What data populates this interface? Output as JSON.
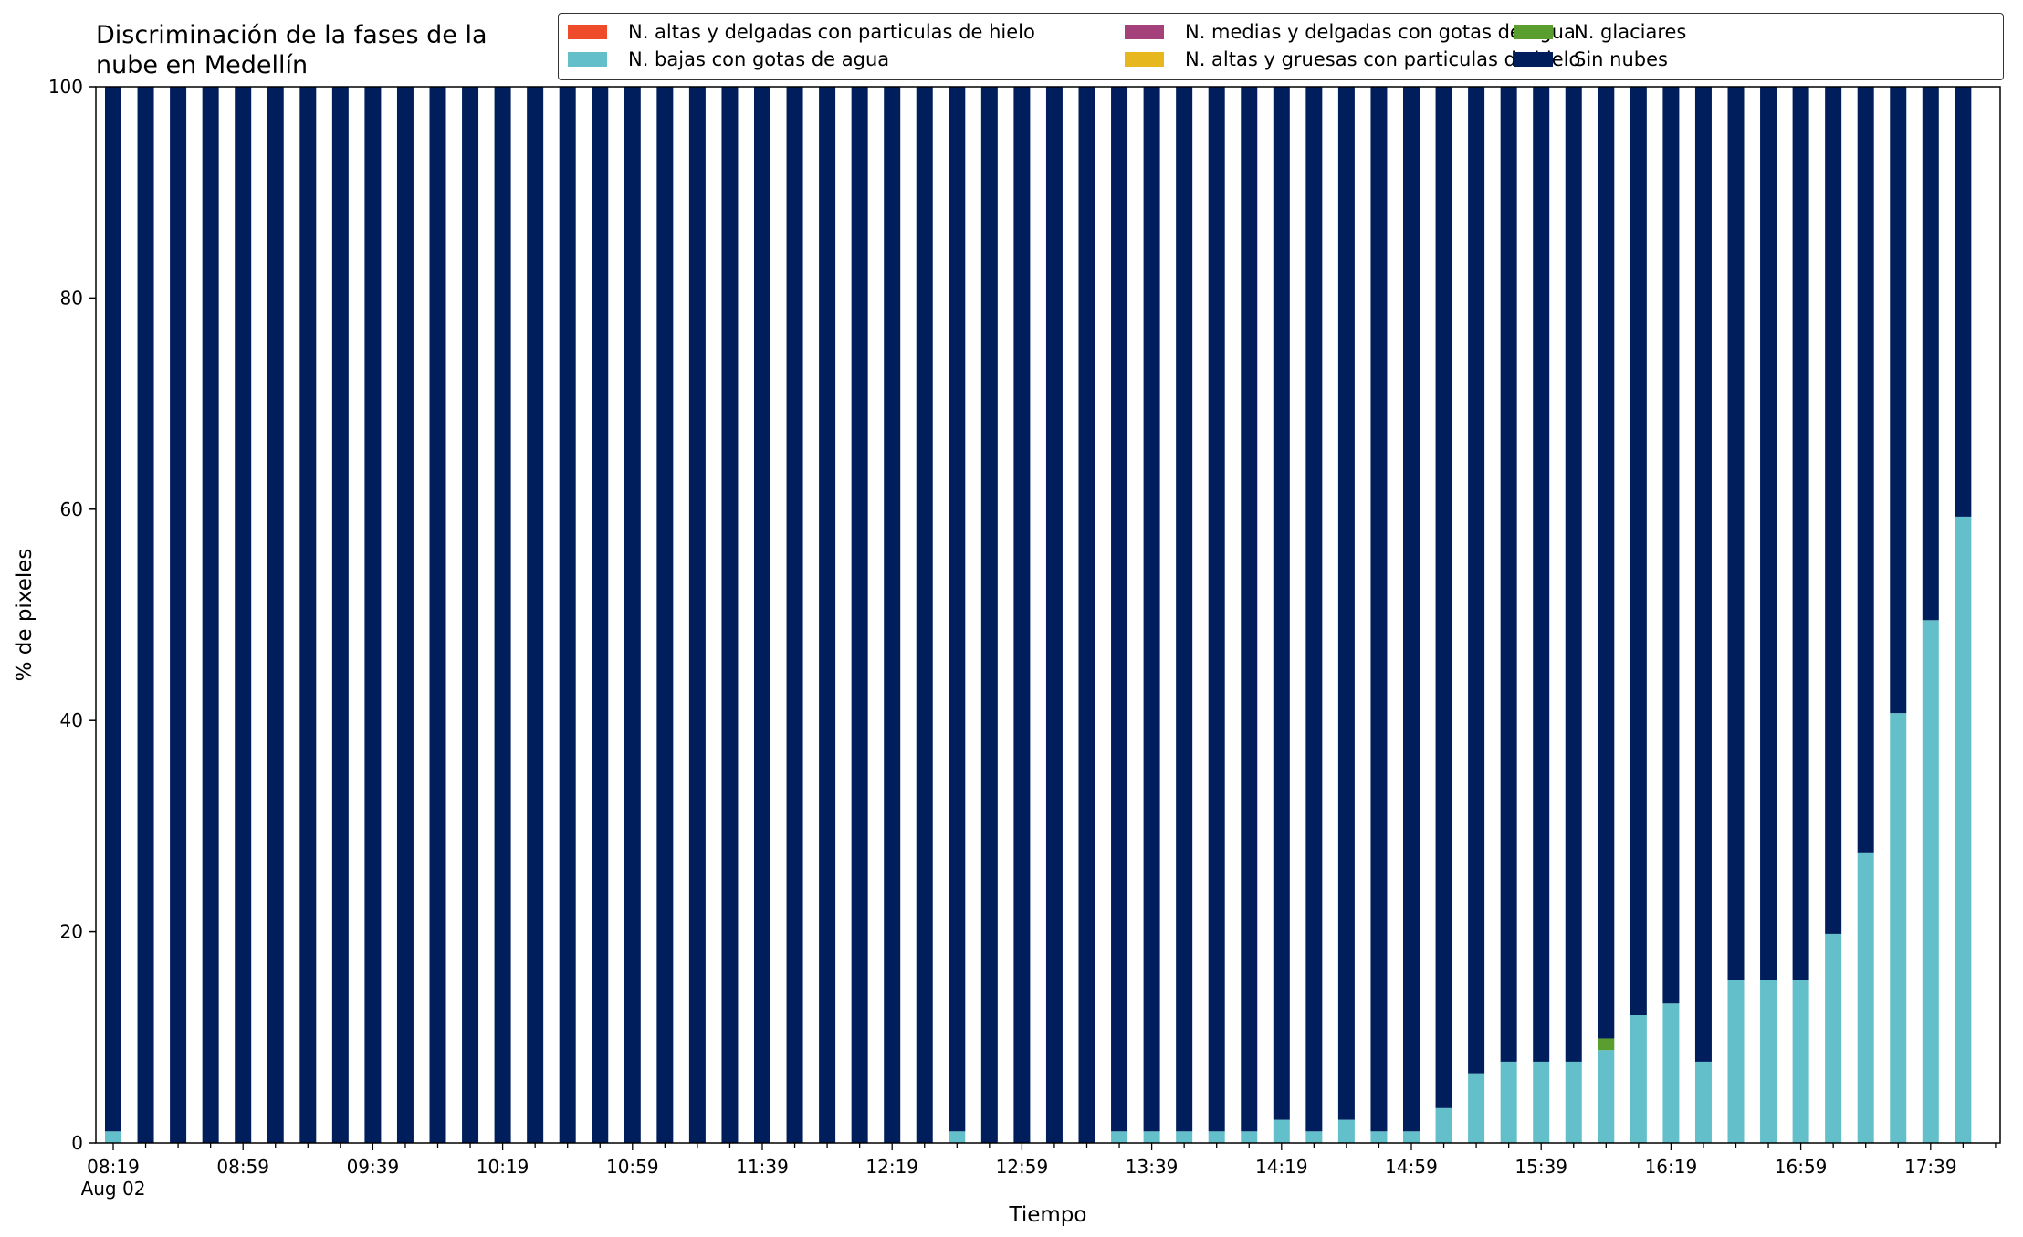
{
  "colors": {
    "N. altas y delgadas con particulas de hielo": "#ee4b2b",
    "N. altas y gruesas con particulas de hielo": "#e6b71e",
    "N. bajas con gotas de agua": "#63bfca",
    "N. glaciares": "#5a9e2f",
    "N. medias y delgadas con gotas de agua": "#a4417a",
    "Sin nubes": "#001e5c"
  },
  "chart_data": {
    "type": "bar",
    "stacked": true,
    "title": "Discriminación de la fases de la\nnube en Medellín",
    "xlabel": "Tiempo",
    "ylabel": "% de pixeles",
    "ylim": [
      0,
      100
    ],
    "yticks": [
      "0",
      "20",
      "40",
      "60",
      "80",
      "100"
    ],
    "x_tick_labels": [
      "08:19",
      "08:59",
      "09:39",
      "10:19",
      "10:59",
      "11:39",
      "12:19",
      "12:59",
      "13:39",
      "14:19",
      "14:59",
      "15:39",
      "16:19",
      "16:59",
      "17:39"
    ],
    "x_date_label": "Aug 02",
    "x_start": "08:19",
    "x_interval_minutes": 10,
    "grid": false,
    "legend_position": "top-right",
    "legend_order": [
      "N. altas y delgadas con particulas de hielo",
      "N. bajas con gotas de agua",
      "N. medias y delgadas con gotas de agua",
      "N. altas y gruesas con particulas de hielo",
      "N. glaciares",
      "Sin nubes"
    ],
    "series": [
      {
        "name": "N. altas y delgadas con particulas de hielo",
        "values": [
          0,
          0,
          0,
          0,
          0,
          0,
          0,
          0,
          0,
          0,
          0,
          0,
          0,
          0,
          0,
          0,
          0,
          0,
          0,
          0,
          0,
          0,
          0,
          0,
          0,
          0,
          0,
          0,
          0,
          0,
          0,
          0,
          0,
          0,
          0,
          0,
          0,
          0,
          0,
          0,
          0,
          0,
          0,
          0,
          0,
          0,
          0,
          0,
          0,
          0,
          0,
          0,
          0,
          0,
          0,
          0,
          0,
          0
        ]
      },
      {
        "name": "N. altas y gruesas con particulas de hielo",
        "values": [
          0,
          0,
          0,
          0,
          0,
          0,
          0,
          0,
          0,
          0,
          0,
          0,
          0,
          0,
          0,
          0,
          0,
          0,
          0,
          0,
          0,
          0,
          0,
          0,
          0,
          0,
          0,
          0,
          0,
          0,
          0,
          0,
          0,
          0,
          0,
          0,
          0,
          0,
          0,
          0,
          0,
          0,
          0,
          0,
          0,
          0,
          0,
          0,
          0,
          0,
          0,
          0,
          0,
          0,
          0,
          0,
          0,
          0
        ]
      },
      {
        "name": "N. bajas con gotas de agua",
        "values": [
          1.1,
          0,
          0,
          0,
          0,
          0,
          0,
          0,
          0,
          0,
          0,
          0,
          0,
          0,
          0,
          0,
          0,
          0,
          0,
          0,
          0,
          0,
          0,
          0,
          0,
          0,
          1.1,
          0,
          0,
          0,
          0,
          1.1,
          1.1,
          1.1,
          1.1,
          1.1,
          2.2,
          1.1,
          2.2,
          1.1,
          1.1,
          3.3,
          6.6,
          7.7,
          7.7,
          7.7,
          8.8,
          12.1,
          13.2,
          7.7,
          15.4,
          15.4,
          15.4,
          19.8,
          27.5,
          40.7,
          49.5,
          59.3
        ]
      },
      {
        "name": "N. glaciares",
        "values": [
          0,
          0,
          0,
          0,
          0,
          0,
          0,
          0,
          0,
          0,
          0,
          0,
          0,
          0,
          0,
          0,
          0,
          0,
          0,
          0,
          0,
          0,
          0,
          0,
          0,
          0,
          0,
          0,
          0,
          0,
          0,
          0,
          0,
          0,
          0,
          0,
          0,
          0,
          0,
          0,
          0,
          0,
          0,
          0,
          0,
          0,
          1.1,
          0,
          0,
          0,
          0,
          0,
          0,
          0,
          0,
          0,
          0,
          0
        ]
      },
      {
        "name": "N. medias y delgadas con gotas de agua",
        "values": [
          0,
          0,
          0,
          0,
          0,
          0,
          0,
          0,
          0,
          0,
          0,
          0,
          0,
          0,
          0,
          0,
          0,
          0,
          0,
          0,
          0,
          0,
          0,
          0,
          0,
          0,
          0,
          0,
          0,
          0,
          0,
          0,
          0,
          0,
          0,
          0,
          0,
          0,
          0,
          0,
          0,
          0,
          0,
          0,
          0,
          0,
          0,
          0,
          0,
          0,
          0,
          0,
          0,
          0,
          0,
          0,
          0,
          0
        ]
      },
      {
        "name": "Sin nubes",
        "values": [
          98.9,
          100,
          100,
          100,
          100,
          100,
          100,
          100,
          100,
          100,
          100,
          100,
          100,
          100,
          100,
          100,
          100,
          100,
          100,
          100,
          100,
          100,
          100,
          100,
          100,
          100,
          98.9,
          100,
          100,
          100,
          100,
          98.9,
          98.9,
          98.9,
          98.9,
          98.9,
          97.8,
          98.9,
          97.8,
          98.9,
          98.9,
          96.7,
          93.4,
          92.3,
          92.3,
          92.3,
          90.1,
          87.9,
          86.8,
          92.3,
          84.6,
          84.6,
          84.6,
          80.2,
          72.5,
          59.3,
          50.5,
          40.7
        ]
      }
    ]
  }
}
